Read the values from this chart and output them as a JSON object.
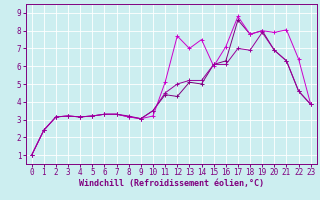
{
  "xlabel": "Windchill (Refroidissement éolien,°C)",
  "bg_color": "#cceef0",
  "grid_color": "#ffffff",
  "spine_color": "#800080",
  "tick_color": "#800080",
  "xlim": [
    -0.5,
    23.5
  ],
  "ylim": [
    0.5,
    9.5
  ],
  "xticks": [
    0,
    1,
    2,
    3,
    4,
    5,
    6,
    7,
    8,
    9,
    10,
    11,
    12,
    13,
    14,
    15,
    16,
    17,
    18,
    19,
    20,
    21,
    22,
    23
  ],
  "yticks": [
    1,
    2,
    3,
    4,
    5,
    6,
    7,
    8,
    9
  ],
  "series1_x": [
    0,
    1,
    2,
    3,
    4,
    5,
    6,
    7,
    8,
    9,
    10,
    11,
    12,
    13,
    14,
    15,
    16,
    17,
    18,
    19,
    20,
    21,
    22,
    23
  ],
  "series1_y": [
    1.0,
    2.4,
    3.15,
    3.2,
    3.15,
    3.2,
    3.3,
    3.3,
    3.15,
    3.05,
    3.5,
    4.4,
    4.3,
    5.1,
    5.0,
    6.1,
    6.3,
    8.6,
    7.8,
    8.0,
    6.9,
    6.3,
    4.6,
    3.85
  ],
  "series2_x": [
    0,
    1,
    2,
    3,
    4,
    5,
    6,
    7,
    8,
    9,
    10,
    11,
    12,
    13,
    14,
    15,
    16,
    17,
    18,
    19,
    20,
    21,
    22,
    23
  ],
  "series2_y": [
    1.0,
    2.4,
    3.15,
    3.2,
    3.15,
    3.2,
    3.3,
    3.3,
    3.15,
    3.05,
    3.2,
    5.1,
    7.7,
    7.0,
    7.5,
    6.0,
    7.1,
    8.8,
    7.8,
    8.0,
    7.9,
    8.05,
    6.4,
    3.85
  ],
  "series3_x": [
    0,
    1,
    2,
    3,
    4,
    5,
    6,
    7,
    8,
    9,
    10,
    11,
    12,
    13,
    14,
    15,
    16,
    17,
    18,
    19,
    20,
    21,
    22,
    23
  ],
  "series3_y": [
    1.0,
    2.4,
    3.15,
    3.2,
    3.15,
    3.2,
    3.3,
    3.3,
    3.2,
    3.05,
    3.5,
    4.5,
    5.0,
    5.2,
    5.2,
    6.1,
    6.1,
    7.0,
    6.9,
    7.9,
    6.9,
    6.3,
    4.6,
    3.85
  ],
  "line_colors": [
    "#800080",
    "#cc00cc",
    "#990099"
  ],
  "xlabel_fontsize": 6,
  "tick_fontsize": 5.5
}
